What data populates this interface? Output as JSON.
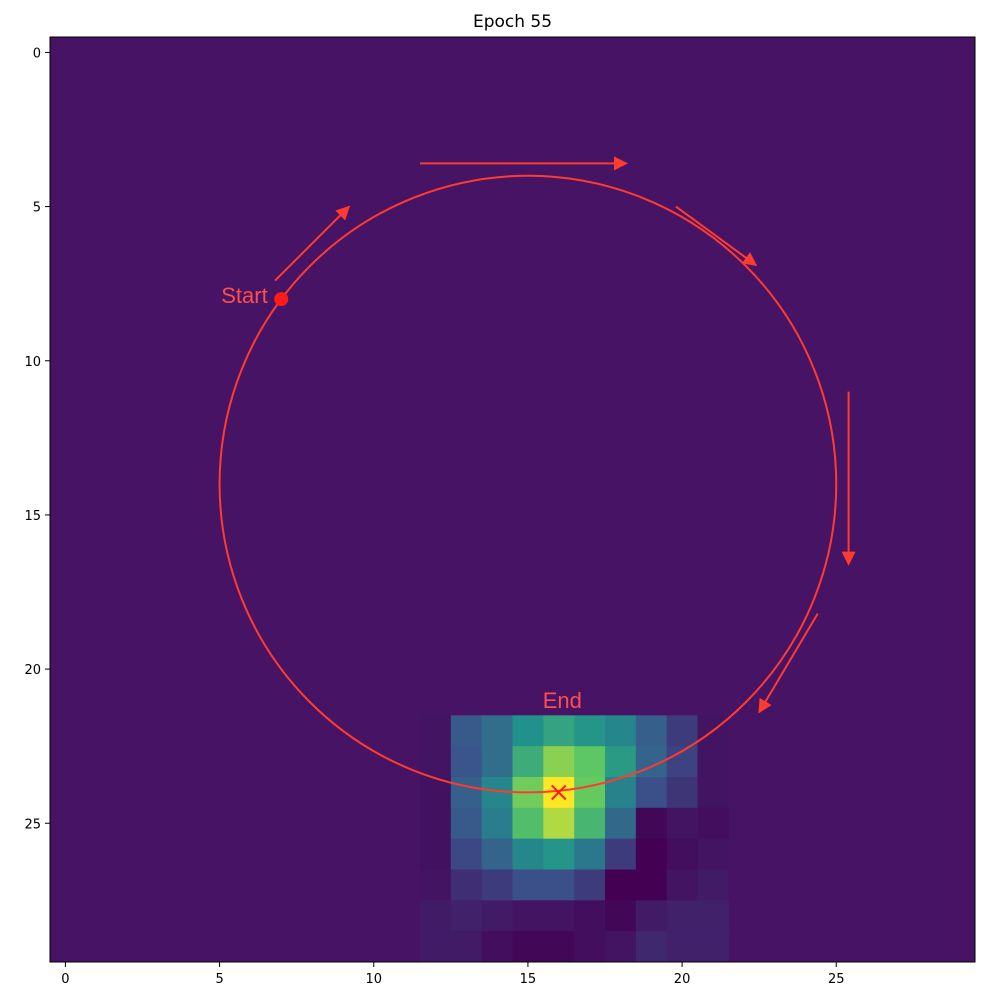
{
  "chart_data": {
    "type": "heatmap",
    "title": "Epoch 55",
    "xlabel": "",
    "ylabel": "",
    "grid_size": 30,
    "xlim": [
      -0.5,
      29.5
    ],
    "ylim": [
      29.5,
      -0.5
    ],
    "x_ticks": [
      0,
      5,
      10,
      15,
      20,
      25
    ],
    "y_ticks": [
      0,
      5,
      10,
      15,
      20,
      25
    ],
    "grid": false,
    "colormap": "viridis",
    "background_color": "#471465",
    "annotation_color": "#ff3b2f",
    "heatmap_cells": [
      {
        "row": 22,
        "col": 12,
        "v": 0.06
      },
      {
        "row": 22,
        "col": 13,
        "v": 0.28
      },
      {
        "row": 22,
        "col": 14,
        "v": 0.36
      },
      {
        "row": 22,
        "col": 15,
        "v": 0.5
      },
      {
        "row": 22,
        "col": 16,
        "v": 0.58
      },
      {
        "row": 22,
        "col": 17,
        "v": 0.52
      },
      {
        "row": 22,
        "col": 18,
        "v": 0.46
      },
      {
        "row": 22,
        "col": 19,
        "v": 0.3
      },
      {
        "row": 22,
        "col": 20,
        "v": 0.18
      },
      {
        "row": 22,
        "col": 21,
        "v": 0.06
      },
      {
        "row": 23,
        "col": 12,
        "v": 0.06
      },
      {
        "row": 23,
        "col": 13,
        "v": 0.26
      },
      {
        "row": 23,
        "col": 14,
        "v": 0.36
      },
      {
        "row": 23,
        "col": 15,
        "v": 0.62
      },
      {
        "row": 23,
        "col": 16,
        "v": 0.82
      },
      {
        "row": 23,
        "col": 17,
        "v": 0.74
      },
      {
        "row": 23,
        "col": 18,
        "v": 0.54
      },
      {
        "row": 23,
        "col": 19,
        "v": 0.32
      },
      {
        "row": 23,
        "col": 20,
        "v": 0.2
      },
      {
        "row": 23,
        "col": 21,
        "v": 0.06
      },
      {
        "row": 24,
        "col": 12,
        "v": 0.05
      },
      {
        "row": 24,
        "col": 13,
        "v": 0.3
      },
      {
        "row": 24,
        "col": 14,
        "v": 0.46
      },
      {
        "row": 24,
        "col": 15,
        "v": 0.78
      },
      {
        "row": 24,
        "col": 16,
        "v": 1.0
      },
      {
        "row": 24,
        "col": 17,
        "v": 0.76
      },
      {
        "row": 24,
        "col": 18,
        "v": 0.44
      },
      {
        "row": 24,
        "col": 19,
        "v": 0.24
      },
      {
        "row": 24,
        "col": 20,
        "v": 0.16
      },
      {
        "row": 24,
        "col": 21,
        "v": 0.06
      },
      {
        "row": 25,
        "col": 12,
        "v": 0.05
      },
      {
        "row": 25,
        "col": 13,
        "v": 0.28
      },
      {
        "row": 25,
        "col": 14,
        "v": 0.42
      },
      {
        "row": 25,
        "col": 15,
        "v": 0.7
      },
      {
        "row": 25,
        "col": 16,
        "v": 0.88
      },
      {
        "row": 25,
        "col": 17,
        "v": 0.66
      },
      {
        "row": 25,
        "col": 18,
        "v": 0.34
      },
      {
        "row": 25,
        "col": 19,
        "v": 0.02
      },
      {
        "row": 25,
        "col": 20,
        "v": 0.06
      },
      {
        "row": 25,
        "col": 21,
        "v": 0.04
      },
      {
        "row": 26,
        "col": 12,
        "v": 0.05
      },
      {
        "row": 26,
        "col": 13,
        "v": 0.22
      },
      {
        "row": 26,
        "col": 14,
        "v": 0.32
      },
      {
        "row": 26,
        "col": 15,
        "v": 0.46
      },
      {
        "row": 26,
        "col": 16,
        "v": 0.52
      },
      {
        "row": 26,
        "col": 17,
        "v": 0.4
      },
      {
        "row": 26,
        "col": 18,
        "v": 0.18
      },
      {
        "row": 26,
        "col": 19,
        "v": 0.0
      },
      {
        "row": 26,
        "col": 20,
        "v": 0.04
      },
      {
        "row": 26,
        "col": 21,
        "v": 0.06
      },
      {
        "row": 27,
        "col": 12,
        "v": 0.06
      },
      {
        "row": 27,
        "col": 13,
        "v": 0.14
      },
      {
        "row": 27,
        "col": 14,
        "v": 0.18
      },
      {
        "row": 27,
        "col": 15,
        "v": 0.24
      },
      {
        "row": 27,
        "col": 16,
        "v": 0.24
      },
      {
        "row": 27,
        "col": 17,
        "v": 0.18
      },
      {
        "row": 27,
        "col": 18,
        "v": 0.0
      },
      {
        "row": 27,
        "col": 19,
        "v": 0.0
      },
      {
        "row": 27,
        "col": 20,
        "v": 0.06
      },
      {
        "row": 27,
        "col": 21,
        "v": 0.08
      },
      {
        "row": 28,
        "col": 12,
        "v": 0.08
      },
      {
        "row": 28,
        "col": 13,
        "v": 0.1
      },
      {
        "row": 28,
        "col": 14,
        "v": 0.08
      },
      {
        "row": 28,
        "col": 15,
        "v": 0.06
      },
      {
        "row": 28,
        "col": 16,
        "v": 0.06
      },
      {
        "row": 28,
        "col": 17,
        "v": 0.04
      },
      {
        "row": 28,
        "col": 18,
        "v": 0.02
      },
      {
        "row": 28,
        "col": 19,
        "v": 0.08
      },
      {
        "row": 28,
        "col": 20,
        "v": 0.1
      },
      {
        "row": 28,
        "col": 21,
        "v": 0.1
      },
      {
        "row": 29,
        "col": 12,
        "v": 0.08
      },
      {
        "row": 29,
        "col": 13,
        "v": 0.08
      },
      {
        "row": 29,
        "col": 14,
        "v": 0.04
      },
      {
        "row": 29,
        "col": 15,
        "v": 0.02
      },
      {
        "row": 29,
        "col": 16,
        "v": 0.02
      },
      {
        "row": 29,
        "col": 17,
        "v": 0.04
      },
      {
        "row": 29,
        "col": 18,
        "v": 0.06
      },
      {
        "row": 29,
        "col": 19,
        "v": 0.12
      },
      {
        "row": 29,
        "col": 20,
        "v": 0.1
      },
      {
        "row": 29,
        "col": 21,
        "v": 0.1
      }
    ],
    "circle": {
      "cx": 15,
      "cy": 14,
      "r": 10
    },
    "start_point": {
      "x": 7,
      "y": 8
    },
    "end_point": {
      "x": 16,
      "y": 24
    },
    "direction_arrows": [
      {
        "x1": 6.8,
        "y1": 7.4,
        "x2": 9.2,
        "y2": 5.0
      },
      {
        "x1": 11.5,
        "y1": 3.6,
        "x2": 18.2,
        "y2": 3.6
      },
      {
        "x1": 19.8,
        "y1": 5.0,
        "x2": 22.4,
        "y2": 6.9
      },
      {
        "x1": 25.4,
        "y1": 11.0,
        "x2": 25.4,
        "y2": 16.6
      },
      {
        "x1": 24.4,
        "y1": 18.2,
        "x2": 22.5,
        "y2": 21.4
      }
    ],
    "annotations": {
      "start_label": "Start",
      "end_label": "End"
    }
  }
}
